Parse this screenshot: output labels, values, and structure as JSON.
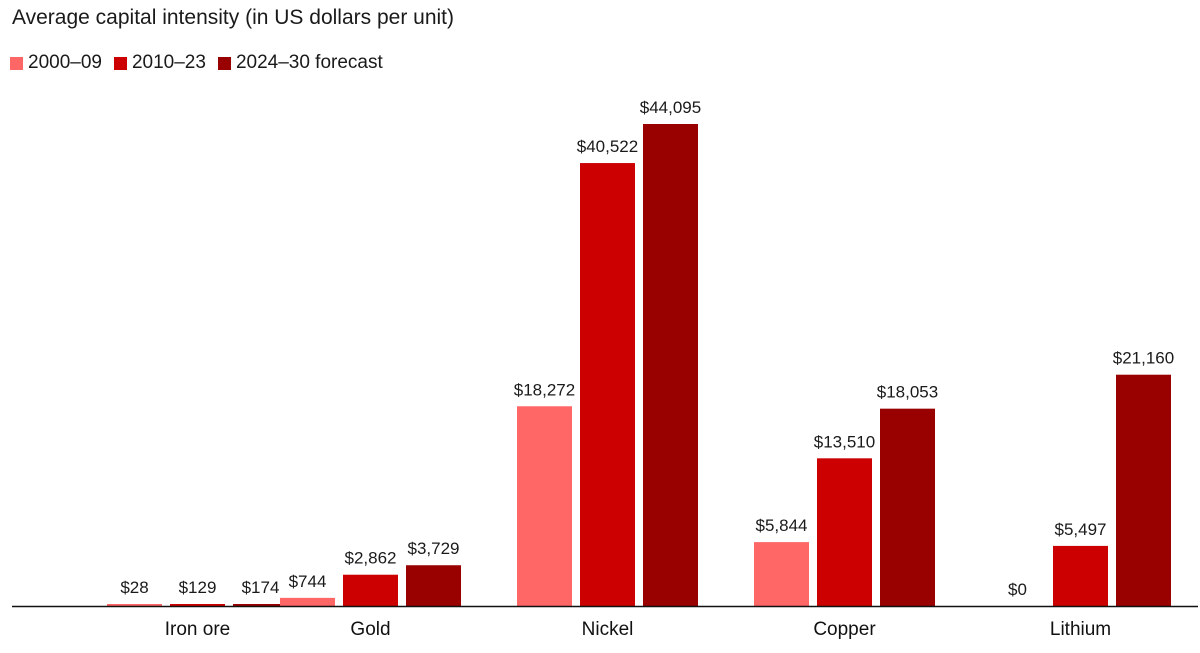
{
  "chart_data": {
    "type": "bar",
    "title": "Average capital intensity (in US dollars per unit)",
    "xlabel": "",
    "ylabel": "",
    "ylim": [
      0,
      44095
    ],
    "categories": [
      "Iron ore",
      "Gold",
      "Nickel",
      "Copper",
      "Lithium"
    ],
    "series": [
      {
        "name": "2000–09",
        "color": "#ff6666",
        "values": [
          28,
          744,
          18272,
          5844,
          0
        ],
        "labels": [
          "$28",
          "$744",
          "$18,272",
          "$5,844",
          "$0"
        ]
      },
      {
        "name": "2010–23",
        "color": "#cc0000",
        "values": [
          129,
          2862,
          40522,
          13510,
          5497
        ],
        "labels": [
          "$129",
          "$2,862",
          "$40,522",
          "$13,510",
          "$5,497"
        ]
      },
      {
        "name": "2024–30 forecast",
        "color": "#990000",
        "values": [
          174,
          3729,
          44095,
          18053,
          21160
        ],
        "labels": [
          "$174",
          "$3,729",
          "$44,095",
          "$18,053",
          "$21,160"
        ]
      }
    ]
  }
}
